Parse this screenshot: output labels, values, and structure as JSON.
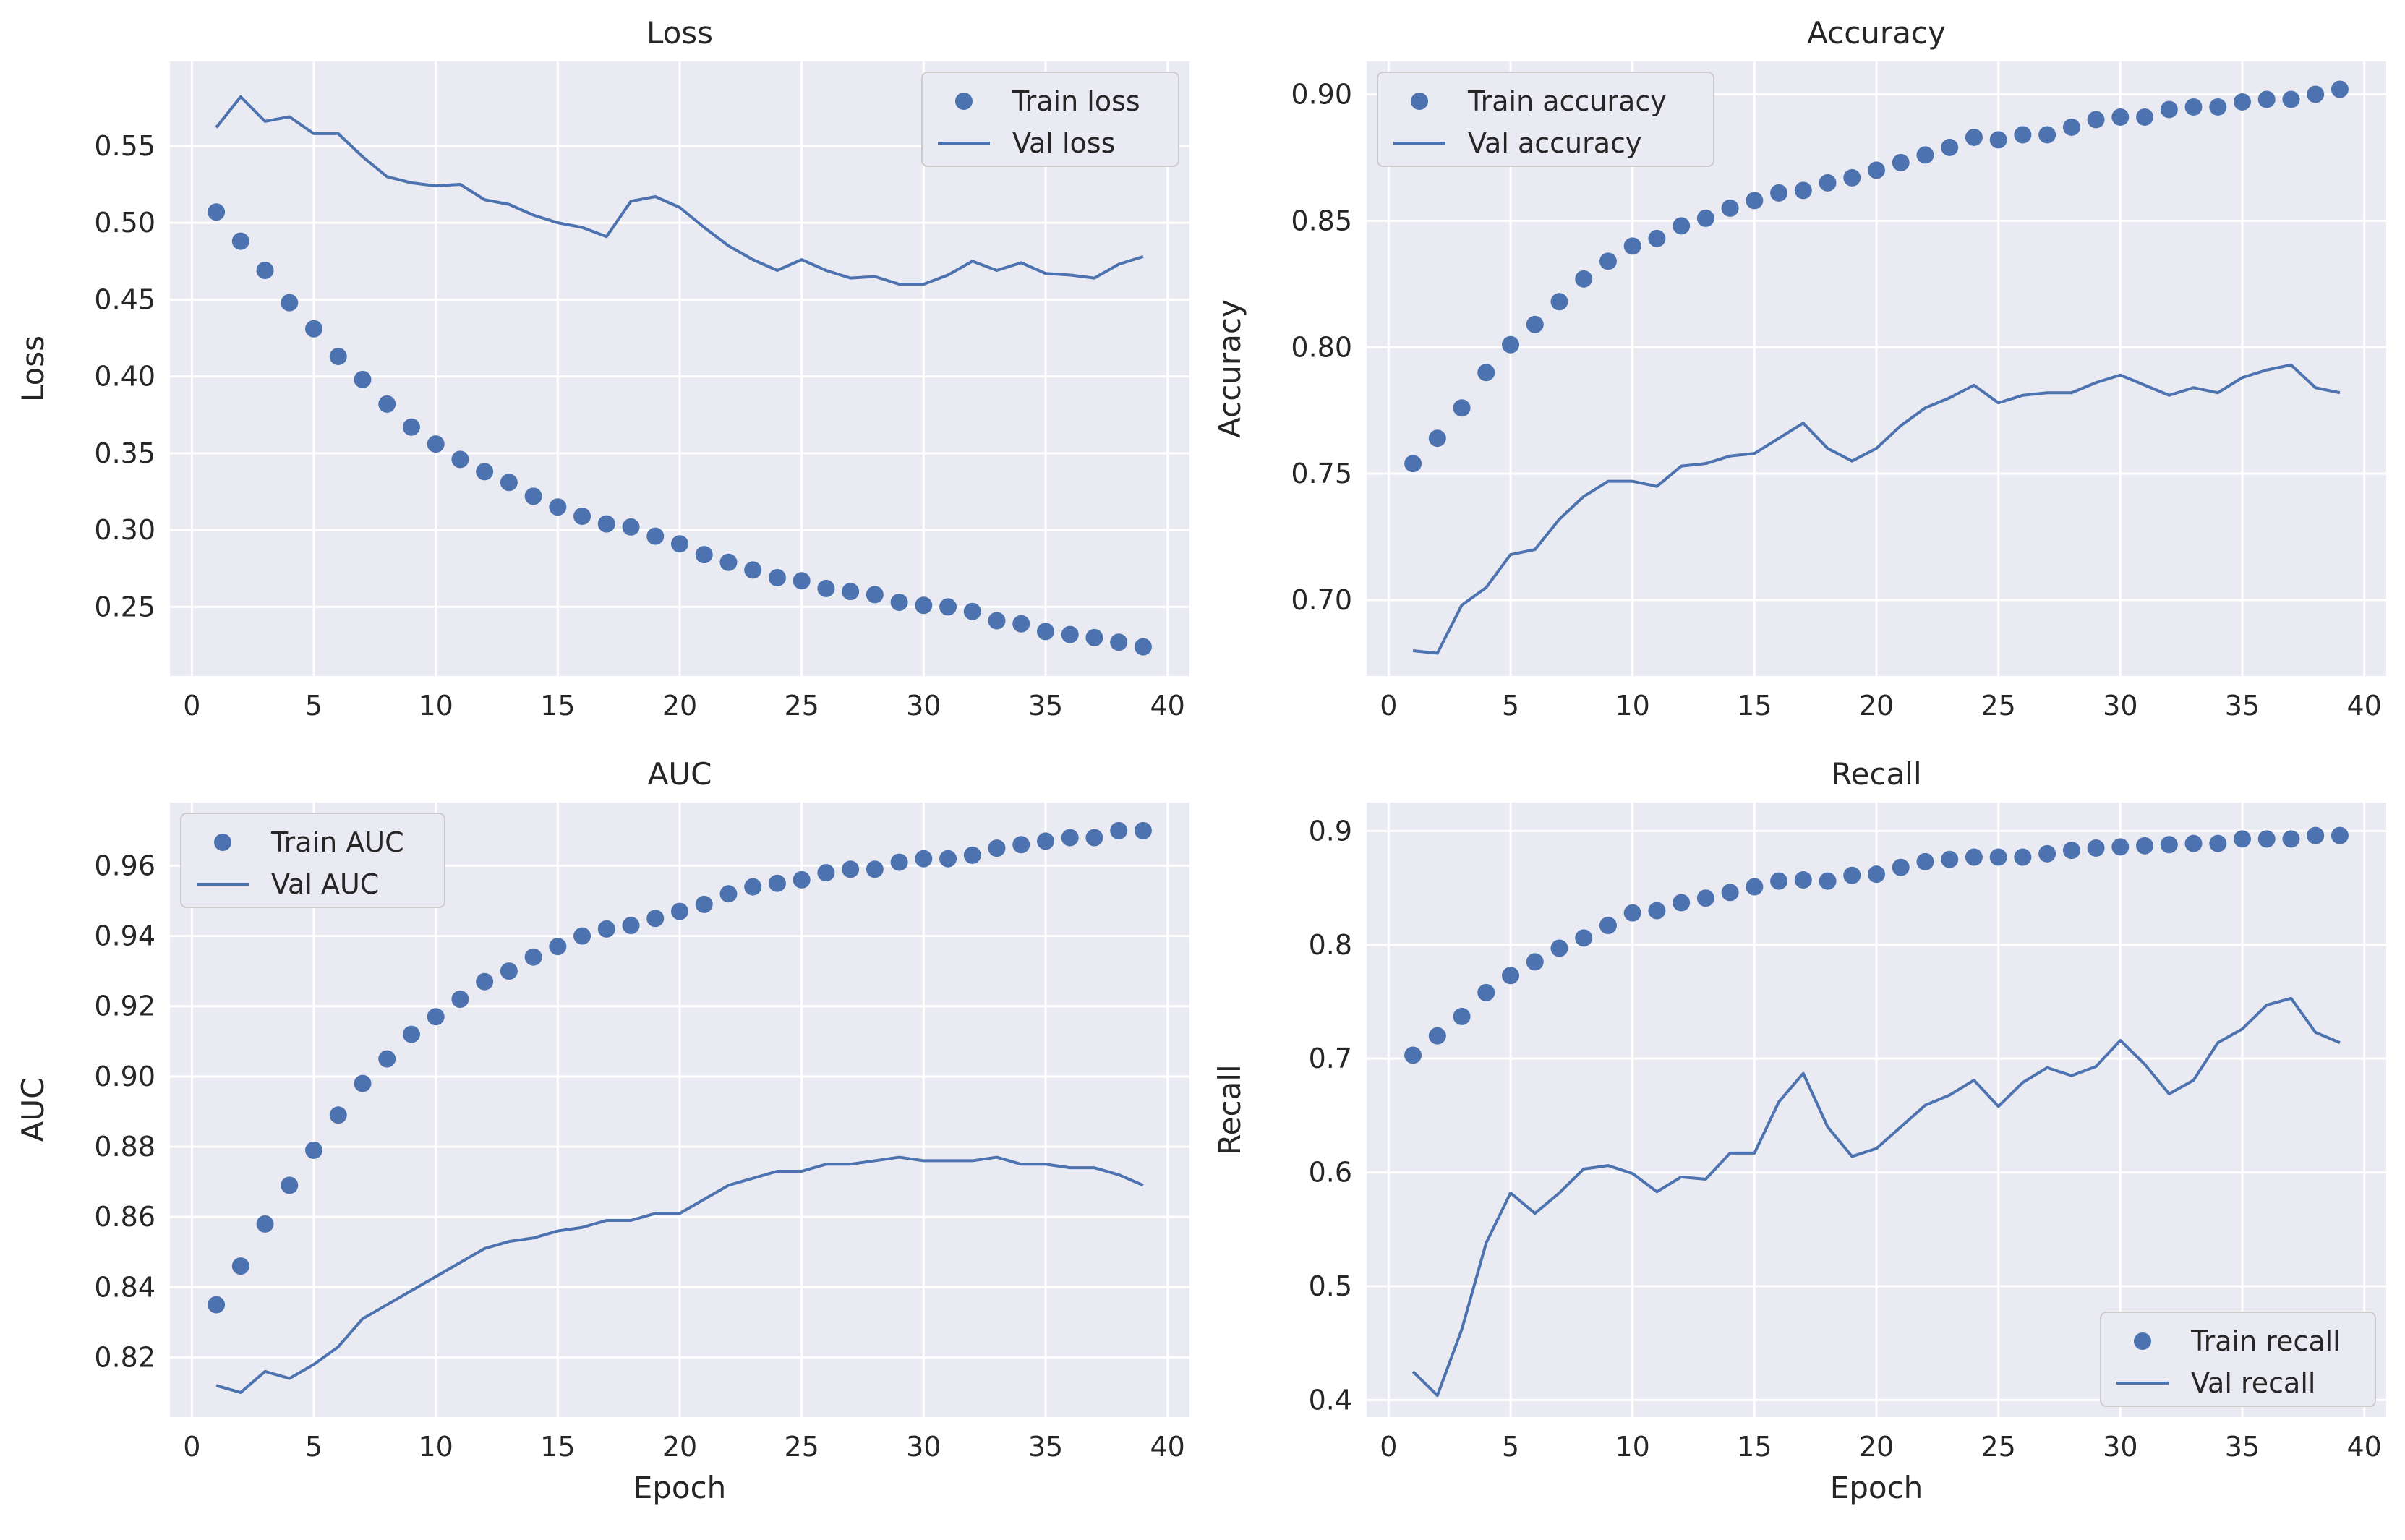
{
  "chart_data": [
    {
      "type": "line",
      "title": "Loss",
      "xlabel": "",
      "ylabel": "Loss",
      "xlim": [
        -0.9,
        40.9
      ],
      "ylim": [
        0.205,
        0.605
      ],
      "xticks": [
        0,
        5,
        10,
        15,
        20,
        25,
        30,
        35,
        40
      ],
      "yticks": [
        0.25,
        0.3,
        0.35,
        0.4,
        0.45,
        0.5,
        0.55
      ],
      "ytick_labels": [
        "0.25",
        "0.30",
        "0.35",
        "0.40",
        "0.45",
        "0.50",
        "0.55"
      ],
      "legend_position": "top-right",
      "x": [
        1,
        2,
        3,
        4,
        5,
        6,
        7,
        8,
        9,
        10,
        11,
        12,
        13,
        14,
        15,
        16,
        17,
        18,
        19,
        20,
        21,
        22,
        23,
        24,
        25,
        26,
        27,
        28,
        29,
        30,
        31,
        32,
        33,
        34,
        35,
        36,
        37,
        38,
        39
      ],
      "series": [
        {
          "name": "Train loss",
          "style": "dots",
          "values": [
            0.507,
            0.488,
            0.469,
            0.448,
            0.431,
            0.413,
            0.398,
            0.382,
            0.367,
            0.356,
            0.346,
            0.338,
            0.331,
            0.322,
            0.315,
            0.309,
            0.304,
            0.302,
            0.296,
            0.291,
            0.284,
            0.279,
            0.274,
            0.269,
            0.267,
            0.262,
            0.26,
            0.258,
            0.253,
            0.251,
            0.25,
            0.247,
            0.241,
            0.239,
            0.234,
            0.232,
            0.23,
            0.227,
            0.224
          ]
        },
        {
          "name": "Val loss",
          "style": "line",
          "values": [
            0.562,
            0.582,
            0.566,
            0.569,
            0.558,
            0.558,
            0.543,
            0.53,
            0.526,
            0.524,
            0.525,
            0.515,
            0.512,
            0.505,
            0.5,
            0.497,
            0.491,
            0.514,
            0.517,
            0.51,
            0.497,
            0.485,
            0.476,
            0.469,
            0.476,
            0.469,
            0.464,
            0.465,
            0.46,
            0.46,
            0.466,
            0.475,
            0.469,
            0.474,
            0.467,
            0.466,
            0.464,
            0.473,
            0.478
          ]
        }
      ]
    },
    {
      "type": "line",
      "title": "Accuracy",
      "xlabel": "",
      "ylabel": "Accuracy",
      "xlim": [
        -0.9,
        40.9
      ],
      "ylim": [
        0.67,
        0.913
      ],
      "xticks": [
        0,
        5,
        10,
        15,
        20,
        25,
        30,
        35,
        40
      ],
      "yticks": [
        0.7,
        0.75,
        0.8,
        0.85,
        0.9
      ],
      "ytick_labels": [
        "0.70",
        "0.75",
        "0.80",
        "0.85",
        "0.90"
      ],
      "legend_position": "top-left",
      "x": [
        1,
        2,
        3,
        4,
        5,
        6,
        7,
        8,
        9,
        10,
        11,
        12,
        13,
        14,
        15,
        16,
        17,
        18,
        19,
        20,
        21,
        22,
        23,
        24,
        25,
        26,
        27,
        28,
        29,
        30,
        31,
        32,
        33,
        34,
        35,
        36,
        37,
        38,
        39
      ],
      "series": [
        {
          "name": "Train accuracy",
          "style": "dots",
          "values": [
            0.754,
            0.764,
            0.776,
            0.79,
            0.801,
            0.809,
            0.818,
            0.827,
            0.834,
            0.84,
            0.843,
            0.848,
            0.851,
            0.855,
            0.858,
            0.861,
            0.862,
            0.865,
            0.867,
            0.87,
            0.873,
            0.876,
            0.879,
            0.883,
            0.882,
            0.884,
            0.884,
            0.887,
            0.89,
            0.891,
            0.891,
            0.894,
            0.895,
            0.895,
            0.897,
            0.898,
            0.898,
            0.9,
            0.902
          ]
        },
        {
          "name": "Val accuracy",
          "style": "line",
          "values": [
            0.68,
            0.679,
            0.698,
            0.705,
            0.718,
            0.72,
            0.732,
            0.741,
            0.747,
            0.747,
            0.745,
            0.753,
            0.754,
            0.757,
            0.758,
            0.764,
            0.77,
            0.76,
            0.755,
            0.76,
            0.769,
            0.776,
            0.78,
            0.785,
            0.778,
            0.781,
            0.782,
            0.782,
            0.786,
            0.789,
            0.785,
            0.781,
            0.784,
            0.782,
            0.788,
            0.791,
            0.793,
            0.784,
            0.782
          ]
        }
      ]
    },
    {
      "type": "line",
      "title": "AUC",
      "xlabel": "Epoch",
      "ylabel": "AUC",
      "xlim": [
        -0.9,
        40.9
      ],
      "ylim": [
        0.803,
        0.978
      ],
      "xticks": [
        0,
        5,
        10,
        15,
        20,
        25,
        30,
        35,
        40
      ],
      "yticks": [
        0.82,
        0.84,
        0.86,
        0.88,
        0.9,
        0.92,
        0.94,
        0.96
      ],
      "ytick_labels": [
        "0.82",
        "0.84",
        "0.86",
        "0.88",
        "0.90",
        "0.92",
        "0.94",
        "0.96"
      ],
      "legend_position": "top-left",
      "x": [
        1,
        2,
        3,
        4,
        5,
        6,
        7,
        8,
        9,
        10,
        11,
        12,
        13,
        14,
        15,
        16,
        17,
        18,
        19,
        20,
        21,
        22,
        23,
        24,
        25,
        26,
        27,
        28,
        29,
        30,
        31,
        32,
        33,
        34,
        35,
        36,
        37,
        38,
        39
      ],
      "series": [
        {
          "name": "Train AUC",
          "style": "dots",
          "values": [
            0.835,
            0.846,
            0.858,
            0.869,
            0.879,
            0.889,
            0.898,
            0.905,
            0.912,
            0.917,
            0.922,
            0.927,
            0.93,
            0.934,
            0.937,
            0.94,
            0.942,
            0.943,
            0.945,
            0.947,
            0.949,
            0.952,
            0.954,
            0.955,
            0.956,
            0.958,
            0.959,
            0.959,
            0.961,
            0.962,
            0.962,
            0.963,
            0.965,
            0.966,
            0.967,
            0.968,
            0.968,
            0.97,
            0.97
          ]
        },
        {
          "name": "Val AUC",
          "style": "line",
          "values": [
            0.812,
            0.81,
            0.816,
            0.814,
            0.818,
            0.823,
            0.831,
            0.835,
            0.839,
            0.843,
            0.847,
            0.851,
            0.853,
            0.854,
            0.856,
            0.857,
            0.859,
            0.859,
            0.861,
            0.861,
            0.865,
            0.869,
            0.871,
            0.873,
            0.873,
            0.875,
            0.875,
            0.876,
            0.877,
            0.876,
            0.876,
            0.876,
            0.877,
            0.875,
            0.875,
            0.874,
            0.874,
            0.872,
            0.869
          ]
        }
      ]
    },
    {
      "type": "line",
      "title": "Recall",
      "xlabel": "Epoch",
      "ylabel": "Recall",
      "xlim": [
        -0.9,
        40.9
      ],
      "ylim": [
        0.385,
        0.925
      ],
      "xticks": [
        0,
        5,
        10,
        15,
        20,
        25,
        30,
        35,
        40
      ],
      "yticks": [
        0.4,
        0.5,
        0.6,
        0.7,
        0.8,
        0.9
      ],
      "ytick_labels": [
        "0.4",
        "0.5",
        "0.6",
        "0.7",
        "0.8",
        "0.9"
      ],
      "legend_position": "bottom-right",
      "x": [
        1,
        2,
        3,
        4,
        5,
        6,
        7,
        8,
        9,
        10,
        11,
        12,
        13,
        14,
        15,
        16,
        17,
        18,
        19,
        20,
        21,
        22,
        23,
        24,
        25,
        26,
        27,
        28,
        29,
        30,
        31,
        32,
        33,
        34,
        35,
        36,
        37,
        38,
        39
      ],
      "series": [
        {
          "name": "Train recall",
          "style": "dots",
          "values": [
            0.703,
            0.72,
            0.737,
            0.758,
            0.773,
            0.785,
            0.797,
            0.806,
            0.817,
            0.828,
            0.83,
            0.837,
            0.841,
            0.846,
            0.851,
            0.856,
            0.857,
            0.856,
            0.861,
            0.862,
            0.868,
            0.873,
            0.875,
            0.877,
            0.877,
            0.877,
            0.88,
            0.883,
            0.885,
            0.886,
            0.887,
            0.888,
            0.889,
            0.889,
            0.893,
            0.893,
            0.893,
            0.896,
            0.896
          ]
        },
        {
          "name": "Val recall",
          "style": "line",
          "values": [
            0.425,
            0.404,
            0.462,
            0.538,
            0.582,
            0.564,
            0.582,
            0.603,
            0.606,
            0.599,
            0.583,
            0.596,
            0.594,
            0.617,
            0.617,
            0.662,
            0.687,
            0.64,
            0.614,
            0.621,
            0.64,
            0.659,
            0.668,
            0.681,
            0.658,
            0.679,
            0.692,
            0.685,
            0.693,
            0.716,
            0.695,
            0.669,
            0.681,
            0.714,
            0.726,
            0.747,
            0.753,
            0.723,
            0.714
          ]
        }
      ]
    }
  ]
}
